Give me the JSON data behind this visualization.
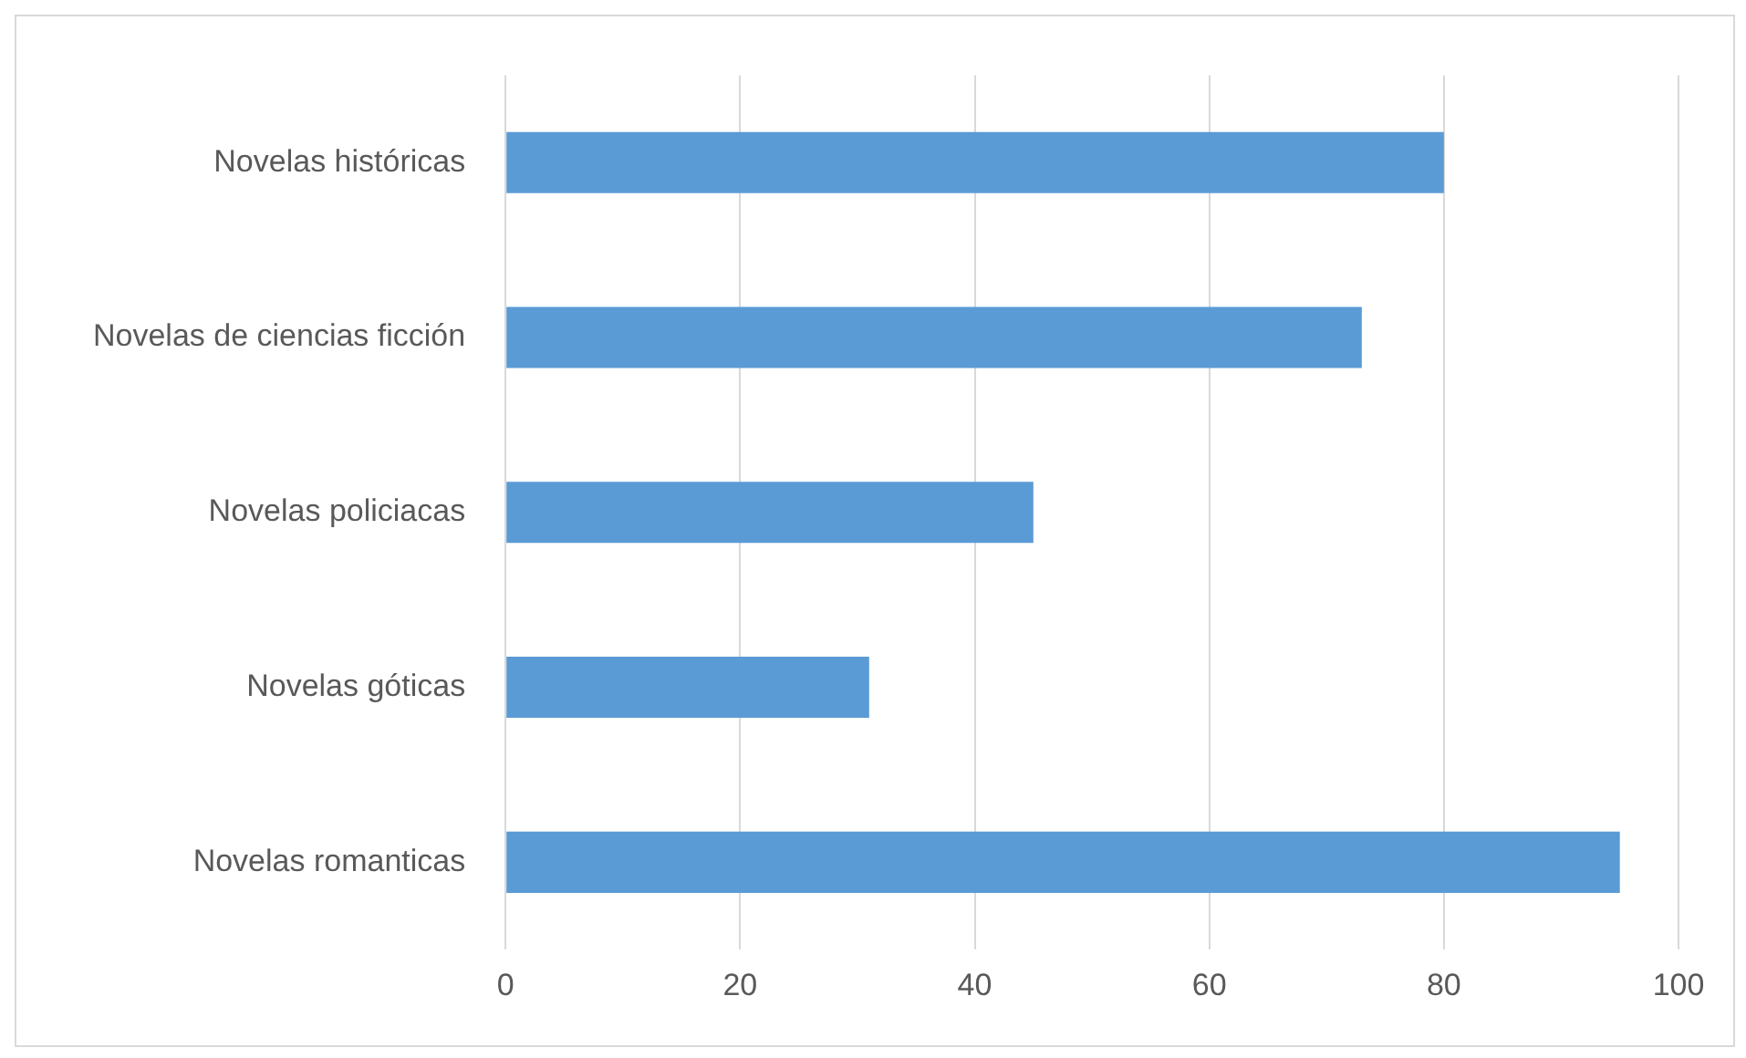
{
  "chart_data": {
    "type": "bar",
    "orientation": "horizontal",
    "categories": [
      "Novelas históricas",
      "Novelas de ciencias ficción",
      "Novelas policiacas",
      "Novelas góticas",
      "Novelas romanticas"
    ],
    "values": [
      80,
      73,
      45,
      31,
      95
    ],
    "color": "#5b9bd5",
    "xlim": [
      0,
      100
    ],
    "xticks": [
      0,
      20,
      40,
      60,
      80,
      100
    ],
    "grid": "x"
  }
}
